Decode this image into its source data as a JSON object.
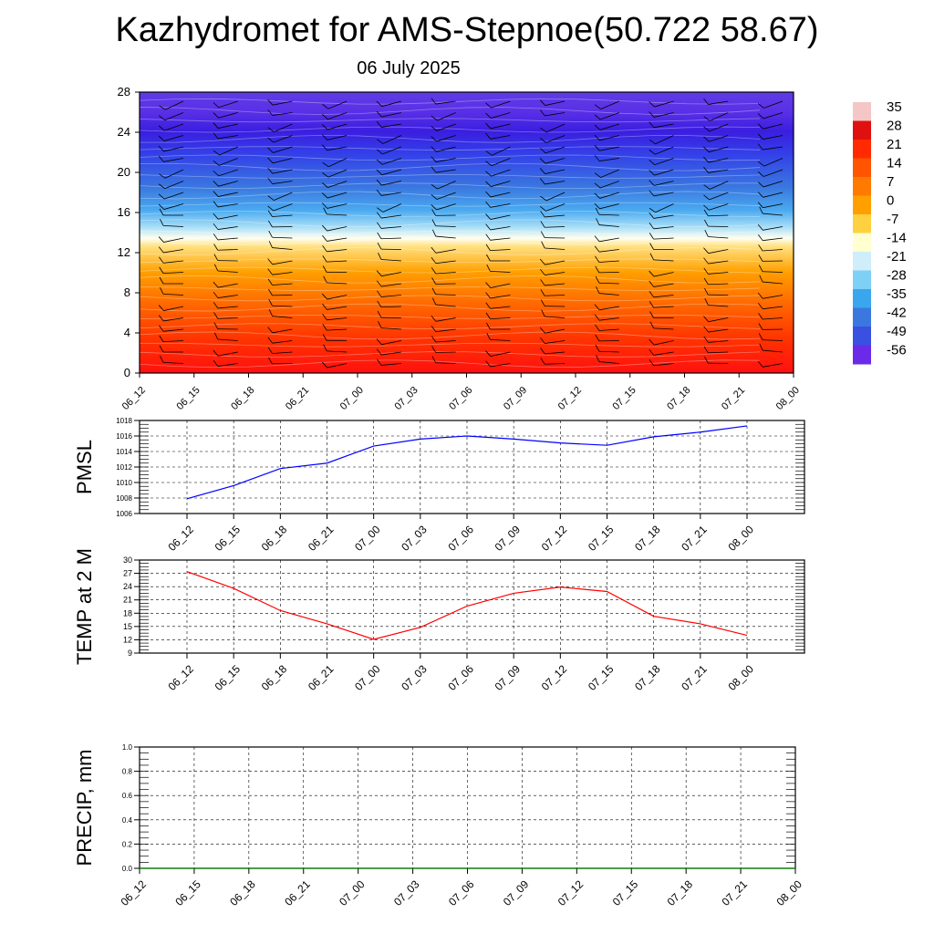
{
  "title": "Kazhydromet for AMS-Stepnoe(50.722 58.67)",
  "subtitle": "06 July 2025",
  "chart_data": [
    {
      "type": "heatmap",
      "name": "cross-section",
      "x_ticks": [
        "06_12",
        "06_15",
        "06_18",
        "06_21",
        "07_00",
        "07_03",
        "07_06",
        "07_09",
        "07_12",
        "07_15",
        "07_18",
        "07_21",
        "08_00"
      ],
      "y_ticks": [
        "0",
        "4",
        "8",
        "12",
        "16",
        "20",
        "24",
        "28"
      ],
      "ylim": [
        0,
        28
      ],
      "color_bar": {
        "labels": [
          "35",
          "28",
          "21",
          "14",
          "7",
          "0",
          "-7",
          "-14",
          "-21",
          "-28",
          "-35",
          "-42",
          "-49",
          "-56"
        ],
        "colors": [
          "#f5c6c6",
          "#e01010",
          "#ff2a00",
          "#ff5500",
          "#ff7a00",
          "#ffa000",
          "#ffd040",
          "#ffffd0",
          "#cfeefa",
          "#7fd0f5",
          "#3aa6ee",
          "#3a78e0",
          "#3a50e0",
          "#6a2ae8"
        ]
      },
      "legend_placement": "right"
    },
    {
      "type": "line",
      "name": "pmsl",
      "ylabel": "PMSL",
      "x_ticks": [
        "06_12",
        "06_15",
        "06_18",
        "06_21",
        "07_00",
        "07_03",
        "07_06",
        "07_09",
        "07_12",
        "07_15",
        "07_18",
        "07_21",
        "08_00"
      ],
      "y_ticks": [
        "1006",
        "1008",
        "1010",
        "1012",
        "1014",
        "1016",
        "1018"
      ],
      "ylim": [
        1006,
        1018
      ],
      "series": [
        {
          "values": [
            1007.9,
            1009.6,
            1011.8,
            1012.5,
            1014.7,
            1015.6,
            1016.0,
            1015.6,
            1015.1,
            1014.8,
            1015.9,
            1016.5,
            1017.3
          ],
          "color": "#0000ff"
        }
      ],
      "grid": true
    },
    {
      "type": "line",
      "name": "temp2m",
      "ylabel": "TEMP at 2 M",
      "x_ticks": [
        "06_12",
        "06_15",
        "06_18",
        "06_21",
        "07_00",
        "07_03",
        "07_06",
        "07_09",
        "07_12",
        "07_15",
        "07_18",
        "07_21",
        "08_00"
      ],
      "y_ticks": [
        "9",
        "12",
        "15",
        "18",
        "21",
        "24",
        "27",
        "30"
      ],
      "ylim": [
        9,
        30
      ],
      "series": [
        {
          "values": [
            27.4,
            23.6,
            18.6,
            15.6,
            12.1,
            14.8,
            19.6,
            22.5,
            23.9,
            22.9,
            17.3,
            15.6,
            13.0
          ],
          "color": "#ff0000"
        }
      ],
      "grid": true
    },
    {
      "type": "line",
      "name": "precip",
      "ylabel": "PRECIP, mm",
      "x_ticks": [
        "06_12",
        "06_15",
        "06_18",
        "06_21",
        "07_00",
        "07_03",
        "07_06",
        "07_09",
        "07_12",
        "07_15",
        "07_18",
        "07_21",
        "08_00"
      ],
      "y_ticks": [
        "0.0",
        "0.2",
        "0.4",
        "0.6",
        "0.8",
        "1.0"
      ],
      "ylim": [
        0,
        1
      ],
      "series": [
        {
          "values": [
            0,
            0,
            0,
            0,
            0,
            0,
            0,
            0,
            0,
            0,
            0,
            0,
            0
          ],
          "color": "#008000"
        }
      ],
      "grid": true
    }
  ]
}
